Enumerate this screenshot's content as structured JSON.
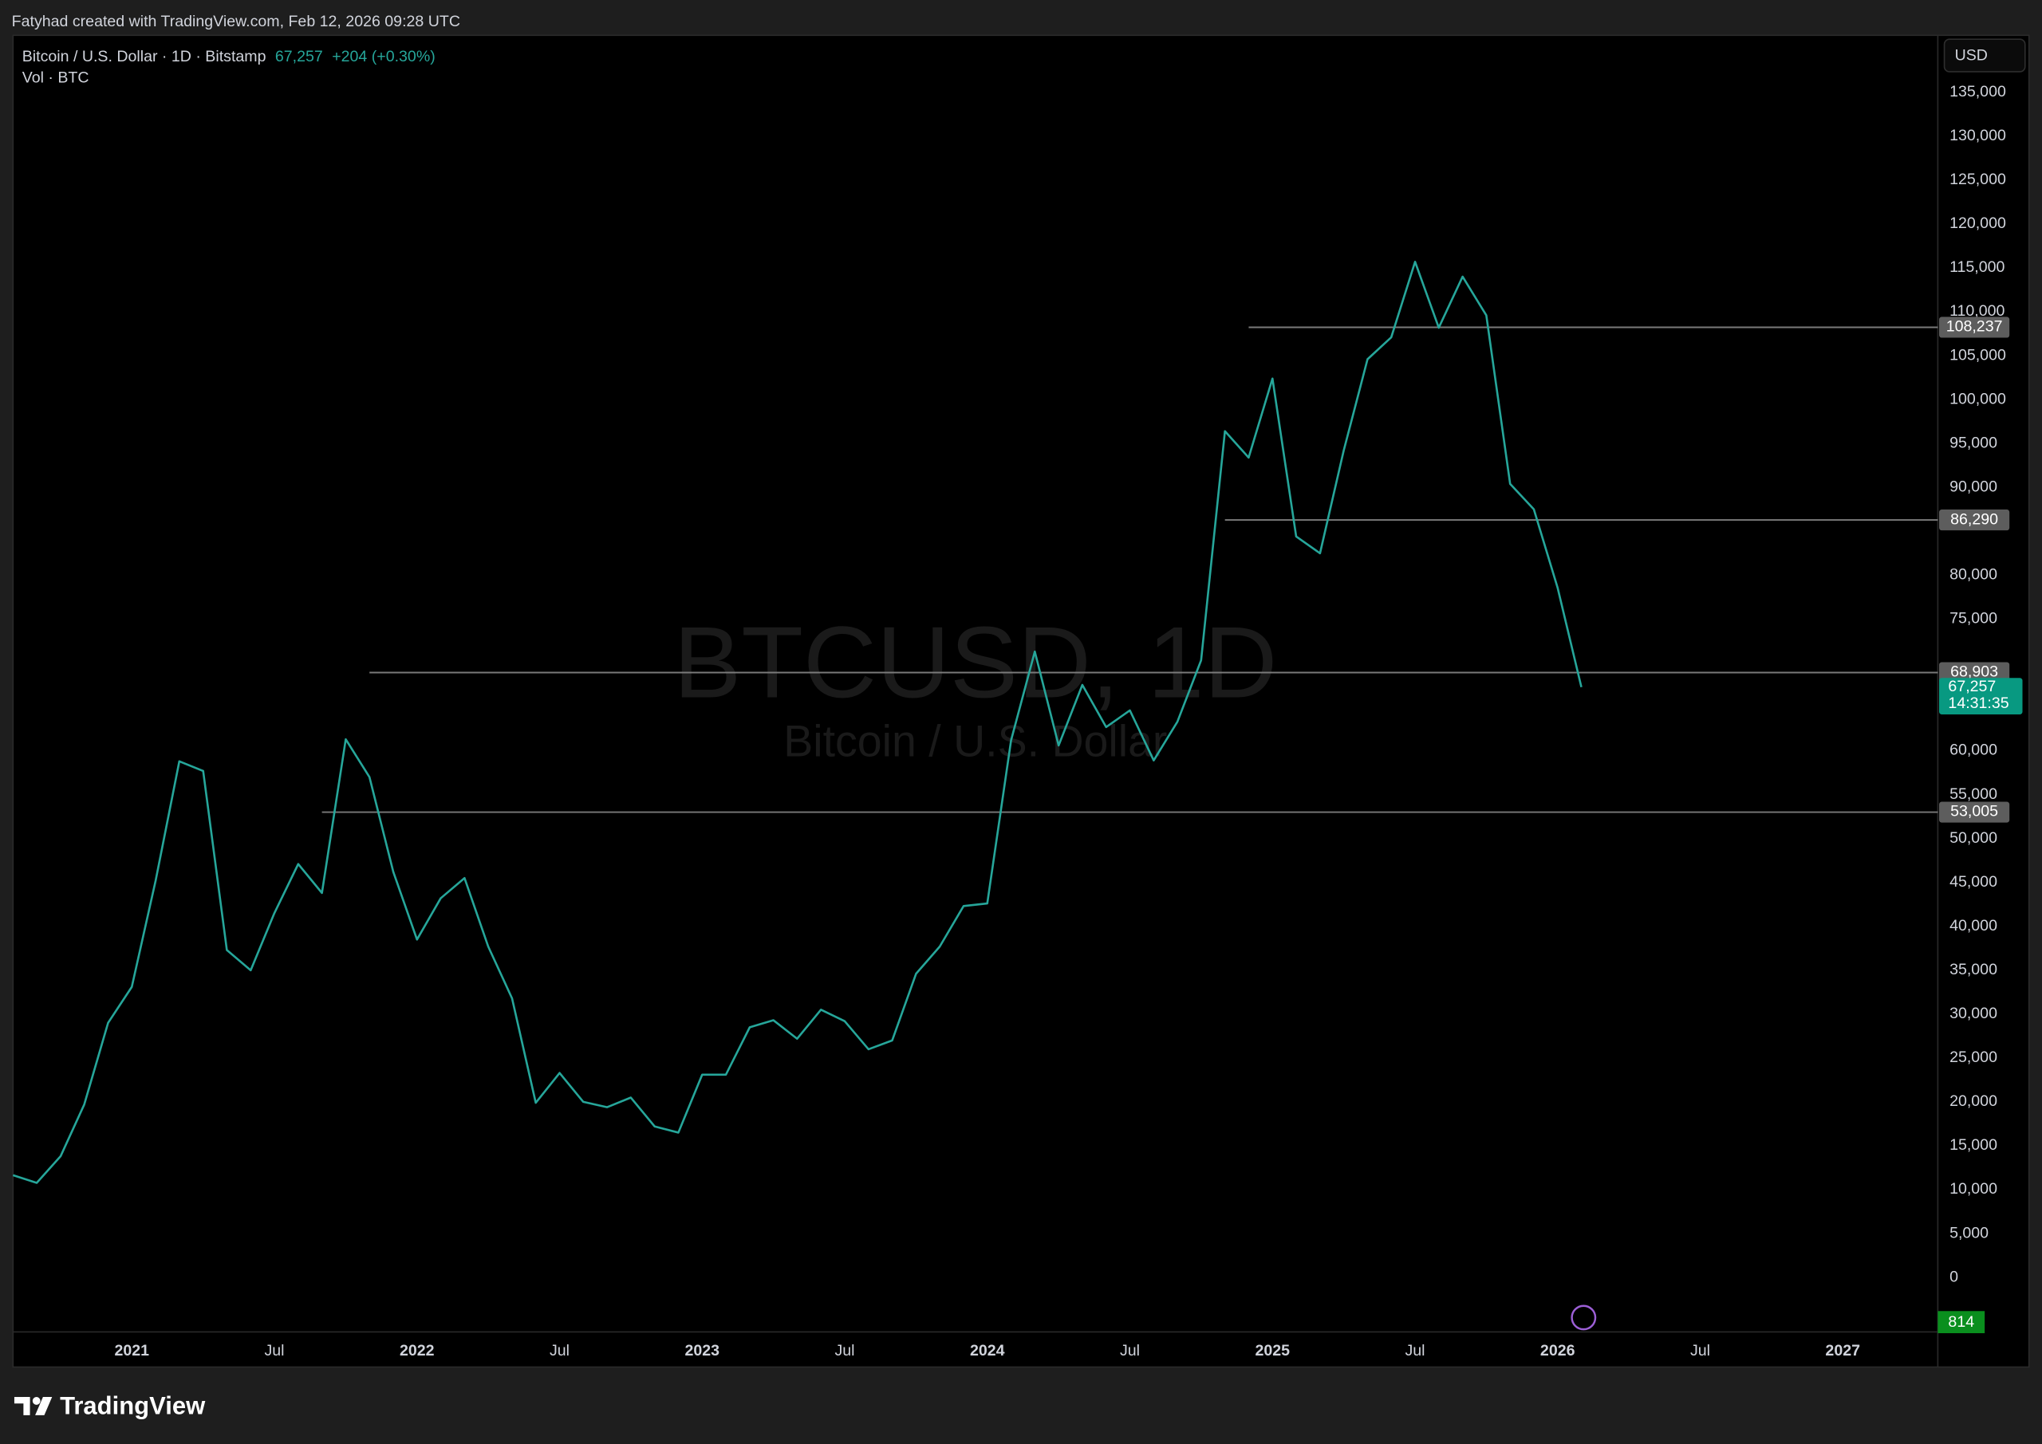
{
  "header": {
    "attribution": "Fatyhad created with TradingView.com, Feb 12, 2026 09:28 UTC"
  },
  "footer": {
    "brand": "TradingView"
  },
  "chart_data": {
    "type": "line",
    "symbol": "Bitcoin / U.S. Dollar · 1D · Bitstamp",
    "last_price": {
      "value": 67257,
      "label": "67,257"
    },
    "change": "+204 (+0.30%)",
    "countdown": "14:31:35",
    "volume_legend": "Vol · BTC",
    "volume_badge": 814,
    "currency": "USD",
    "watermark": "BTCUSD, 1D",
    "watermark_subtitle": "Bitcoin / U.S. Dollar",
    "color": "#26a69a",
    "x": [
      "2020-08",
      "2020-09",
      "2020-10",
      "2020-11",
      "2020-12",
      "2021-01",
      "2021-02",
      "2021-03",
      "2021-04",
      "2021-05",
      "2021-06",
      "2021-07",
      "2021-08",
      "2021-09",
      "2021-10",
      "2021-11",
      "2021-12",
      "2022-01",
      "2022-02",
      "2022-03",
      "2022-04",
      "2022-05",
      "2022-06",
      "2022-07",
      "2022-08",
      "2022-09",
      "2022-10",
      "2022-11",
      "2022-12",
      "2023-01",
      "2023-02",
      "2023-03",
      "2023-04",
      "2023-05",
      "2023-06",
      "2023-07",
      "2023-08",
      "2023-09",
      "2023-10",
      "2023-11",
      "2023-12",
      "2024-01",
      "2024-02",
      "2024-03",
      "2024-04",
      "2024-05",
      "2024-06",
      "2024-07",
      "2024-08",
      "2024-09",
      "2024-10",
      "2024-11",
      "2024-12",
      "2025-01",
      "2025-02",
      "2025-03",
      "2025-04",
      "2025-05",
      "2025-06",
      "2025-07",
      "2025-08",
      "2025-09",
      "2025-10",
      "2025-11",
      "2025-12",
      "2026-01",
      "2026-02"
    ],
    "values": [
      11650,
      10780,
      13800,
      19700,
      29000,
      33100,
      45200,
      58800,
      57700,
      37300,
      35000,
      41500,
      47100,
      43800,
      61300,
      57000,
      46200,
      38500,
      43200,
      45500,
      37700,
      31800,
      19900,
      23300,
      20000,
      19400,
      20500,
      17200,
      16500,
      23100,
      23100,
      28500,
      29300,
      27200,
      30500,
      29200,
      26000,
      27000,
      34600,
      37700,
      42300,
      42600,
      61200,
      71300,
      60600,
      67500,
      62700,
      64600,
      58900,
      63300,
      70300,
      96400,
      93400,
      102400,
      84400,
      82500,
      94200,
      104600,
      107100,
      115700,
      108200,
      114000,
      109600,
      90400,
      87500,
      78600,
      67257
    ],
    "levels": [
      {
        "value": 108237,
        "label": "108,237",
        "start": "2024-12"
      },
      {
        "value": 86290,
        "label": "86,290",
        "start": "2024-11"
      },
      {
        "value": 68903,
        "label": "68,903",
        "start": "2021-11"
      },
      {
        "value": 53005,
        "label": "53,005",
        "start": "2021-09"
      }
    ],
    "xlim": [
      "2020-08",
      "2027-05"
    ],
    "xticks": [
      {
        "value": "2021-01",
        "label": "2021"
      },
      {
        "value": "2021-07",
        "label": "Jul"
      },
      {
        "value": "2022-01",
        "label": "2022"
      },
      {
        "value": "2022-07",
        "label": "Jul"
      },
      {
        "value": "2023-01",
        "label": "2023"
      },
      {
        "value": "2023-07",
        "label": "Jul"
      },
      {
        "value": "2024-01",
        "label": "2024"
      },
      {
        "value": "2024-07",
        "label": "Jul"
      },
      {
        "value": "2025-01",
        "label": "2025"
      },
      {
        "value": "2025-07",
        "label": "Jul"
      },
      {
        "value": "2026-01",
        "label": "2026"
      },
      {
        "value": "2026-07",
        "label": "Jul"
      },
      {
        "value": "2027-01",
        "label": "2027"
      }
    ],
    "ylim": [
      -6200,
      141500
    ],
    "yticks": [
      0,
      {
        "value": 5000,
        "label": "5,000"
      },
      {
        "value": 10000,
        "label": "10,000"
      },
      {
        "value": 15000,
        "label": "15,000"
      },
      {
        "value": 20000,
        "label": "20,000"
      },
      {
        "value": 25000,
        "label": "25,000"
      },
      {
        "value": 30000,
        "label": "30,000"
      },
      {
        "value": 35000,
        "label": "35,000"
      },
      {
        "value": 40000,
        "label": "40,000"
      },
      {
        "value": 45000,
        "label": "45,000"
      },
      {
        "value": 50000,
        "label": "50,000"
      },
      {
        "value": 55000,
        "label": "55,000"
      },
      {
        "value": 60000,
        "label": "60,000"
      },
      {
        "value": 75000,
        "label": "75,000"
      },
      {
        "value": 80000,
        "label": "80,000"
      },
      {
        "value": 90000,
        "label": "90,000"
      },
      {
        "value": 95000,
        "label": "95,000"
      },
      {
        "value": 100000,
        "label": "100,000"
      },
      {
        "value": 105000,
        "label": "105,000"
      },
      {
        "value": 110000,
        "label": "110,000"
      },
      {
        "value": 115000,
        "label": "115,000"
      },
      {
        "value": 120000,
        "label": "120,000"
      },
      {
        "value": 125000,
        "label": "125,000"
      },
      {
        "value": 130000,
        "label": "130,000"
      },
      {
        "value": 135000,
        "label": "135,000"
      }
    ],
    "grid": false
  }
}
